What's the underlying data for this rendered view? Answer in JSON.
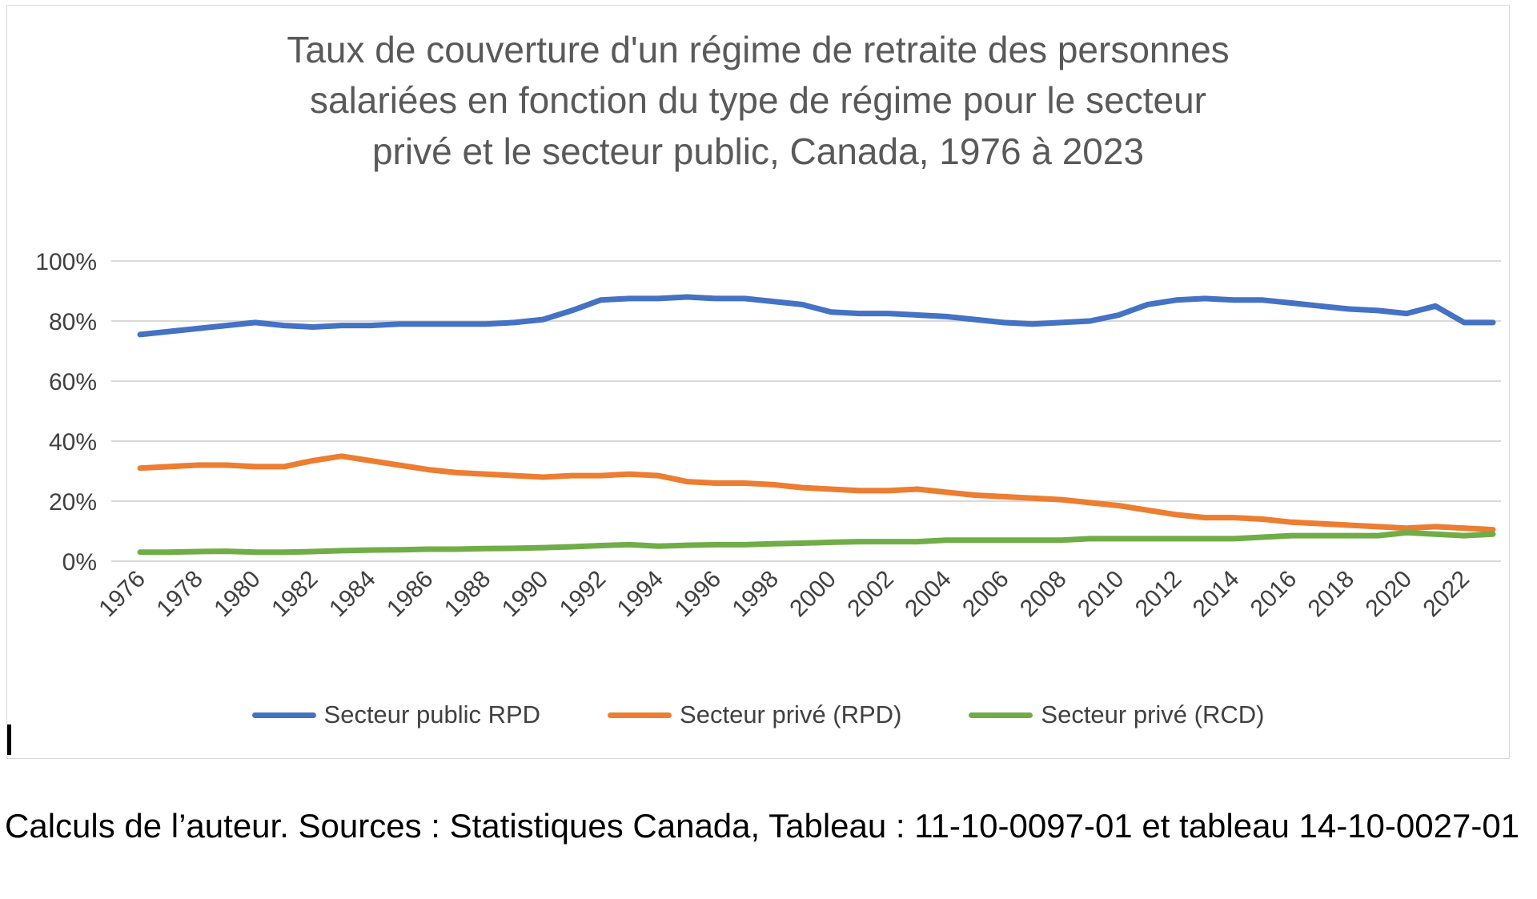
{
  "chart": {
    "title_lines": [
      "Taux de couverture d'un régime de retraite des personnes",
      "salariées en fonction du type de régime pour le secteur",
      "privé et le secteur public, Canada, 1976 à 2023"
    ]
  },
  "caption": {
    "text": "Calculs de l’auteur. Sources : Statistiques Canada, Tableau : 11-10-0097-01 et tableau 14-10-0027-01"
  },
  "colors": {
    "grid": "#D9D9D9",
    "title_text": "#595959",
    "axis_text": "#404040",
    "background": "#FFFFFF",
    "border": "#D9D9D9"
  },
  "chart_data": {
    "type": "line",
    "title": "Taux de couverture d'un régime de retraite des personnes salariées en fonction du type de régime pour le secteur privé et le secteur public, Canada, 1976 à 2023",
    "xlabel": "",
    "ylabel": "",
    "ylim": [
      0,
      100
    ],
    "grid": true,
    "legend_position": "bottom",
    "y_ticks": [
      0,
      20,
      40,
      60,
      80,
      100
    ],
    "y_tick_labels": [
      "0%",
      "20%",
      "40%",
      "60%",
      "80%",
      "100%"
    ],
    "x": [
      1976,
      1977,
      1978,
      1979,
      1980,
      1981,
      1982,
      1983,
      1984,
      1985,
      1986,
      1987,
      1988,
      1989,
      1990,
      1991,
      1992,
      1993,
      1994,
      1995,
      1996,
      1997,
      1998,
      1999,
      2000,
      2001,
      2002,
      2003,
      2004,
      2005,
      2006,
      2007,
      2008,
      2009,
      2010,
      2011,
      2012,
      2013,
      2014,
      2015,
      2016,
      2017,
      2018,
      2019,
      2020,
      2021,
      2022,
      2023
    ],
    "x_tick_labels": [
      "1976",
      "1978",
      "1980",
      "1982",
      "1984",
      "1986",
      "1988",
      "1990",
      "1992",
      "1994",
      "1996",
      "1998",
      "2000",
      "2002",
      "2004",
      "2006",
      "2008",
      "2010",
      "2012",
      "2014",
      "2016",
      "2018",
      "2020",
      "2022"
    ],
    "series": [
      {
        "name": "Secteur public RPD",
        "color": "#4472C4",
        "values": [
          75.5,
          76.5,
          77.5,
          78.5,
          79.5,
          78.5,
          78,
          78.5,
          78.5,
          79,
          79,
          79,
          79,
          79.5,
          80.5,
          83.5,
          87,
          87.5,
          87.5,
          88,
          87.5,
          87.5,
          86.5,
          85.5,
          83,
          82.5,
          82.5,
          82,
          81.5,
          80.5,
          79.5,
          79,
          79.5,
          80,
          82,
          85.5,
          87,
          87.5,
          87,
          87,
          86,
          85,
          84,
          83.5,
          82.5,
          85,
          79.5,
          79.5
        ]
      },
      {
        "name": "Secteur privé (RPD)",
        "color": "#ED7D31",
        "values": [
          31,
          31.5,
          32,
          32,
          31.5,
          31.5,
          33.5,
          35,
          33.5,
          32,
          30.5,
          29.5,
          29,
          28.5,
          28,
          28.5,
          28.5,
          29,
          28.5,
          26.5,
          26,
          26,
          25.5,
          24.5,
          24,
          23.5,
          23.5,
          24,
          23,
          22,
          21.5,
          21,
          20.5,
          19.5,
          18.5,
          17,
          15.5,
          14.5,
          14.5,
          14,
          13,
          12.5,
          12,
          11.5,
          11,
          11.5,
          11,
          10.5
        ]
      },
      {
        "name": "Secteur privé (RCD)",
        "color": "#70AD47",
        "values": [
          3,
          3,
          3.2,
          3.3,
          3,
          3,
          3.2,
          3.5,
          3.7,
          3.8,
          4,
          4,
          4.2,
          4.3,
          4.5,
          4.8,
          5.2,
          5.5,
          5,
          5.3,
          5.5,
          5.5,
          5.8,
          6,
          6.3,
          6.5,
          6.5,
          6.5,
          7,
          7,
          7,
          7,
          7,
          7.5,
          7.5,
          7.5,
          7.5,
          7.5,
          7.5,
          8,
          8.5,
          8.5,
          8.5,
          8.5,
          9.5,
          9,
          8.5,
          9
        ]
      }
    ]
  }
}
